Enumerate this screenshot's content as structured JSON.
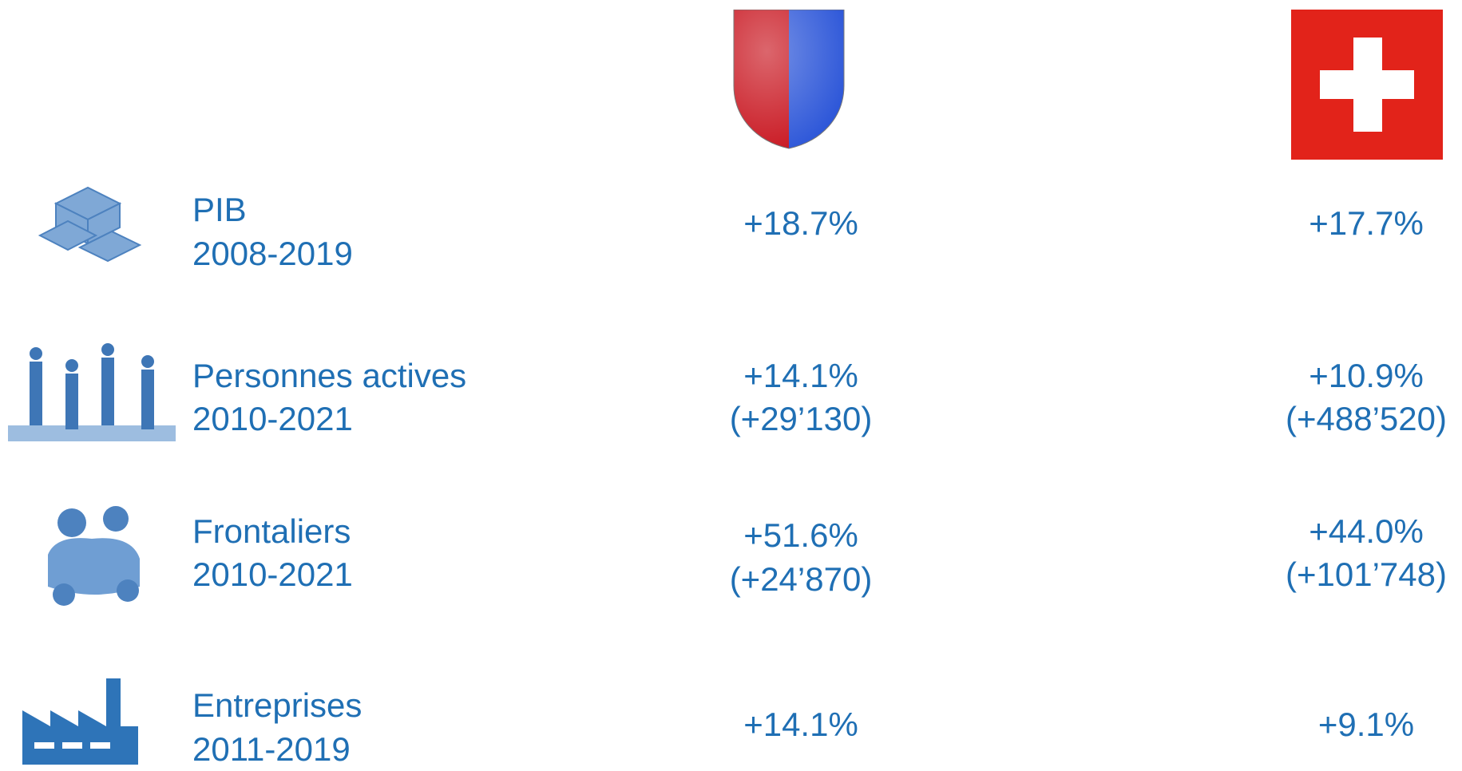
{
  "rows": [
    {
      "label": "PIB",
      "period": "2008-2019",
      "ticino": [
        "+18.7%"
      ],
      "suisse": [
        "+17.7%"
      ]
    },
    {
      "label": "Personnes actives",
      "period": "2010-2021",
      "ticino": [
        "+14.1%",
        "(+29’130)"
      ],
      "suisse": [
        "+10.9%",
        "(+488’520)"
      ]
    },
    {
      "label": "Frontaliers",
      "period": "2010-2021",
      "ticino": [
        "+51.6%",
        "(+24’870)"
      ],
      "suisse": [
        "+44.0%",
        "(+101’748)"
      ]
    },
    {
      "label": "Entreprises",
      "period": "2011-2019",
      "ticino": [
        "+14.1%"
      ],
      "suisse": [
        "+9.1%"
      ]
    }
  ]
}
